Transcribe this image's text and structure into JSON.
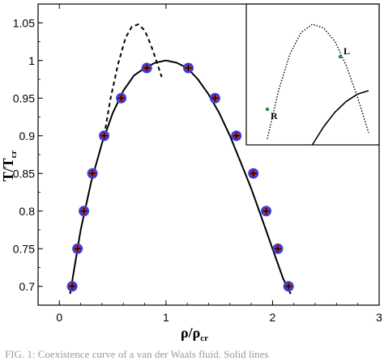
{
  "chart_data": {
    "type": "line",
    "xlabel": {
      "main": "ρ/ρ",
      "sub": "cr"
    },
    "ylabel": {
      "main": "T/T",
      "sub": "cr"
    },
    "xlim": [
      -0.2,
      3.0
    ],
    "ylim": [
      0.675,
      1.075
    ],
    "x_ticks": [
      0,
      1,
      2,
      3
    ],
    "x_tick_labels": [
      "0",
      "1",
      "2",
      "3"
    ],
    "y_ticks": [
      0.7,
      0.75,
      0.8,
      0.85,
      0.9,
      0.95,
      1.0,
      1.05
    ],
    "y_tick_labels": [
      "0.7",
      "0.75",
      "0.8",
      "0.85",
      "0.9",
      "0.95",
      "1",
      "1.05"
    ],
    "grid": false,
    "series": [
      {
        "style": "solid line",
        "color": "#000000",
        "x": [
          0.1,
          0.2,
          0.3,
          0.4,
          0.5,
          0.6,
          0.7,
          0.8,
          0.9,
          1.0,
          1.1,
          1.2,
          1.3,
          1.4,
          1.5,
          1.6,
          1.7,
          1.8,
          1.9,
          2.0,
          2.1,
          2.17
        ],
        "y": [
          0.69,
          0.775,
          0.84,
          0.89,
          0.93,
          0.96,
          0.98,
          0.99,
          0.997,
          1.0,
          0.997,
          0.99,
          0.975,
          0.955,
          0.93,
          0.9,
          0.865,
          0.83,
          0.79,
          0.75,
          0.71,
          0.69
        ]
      },
      {
        "style": "dashed line",
        "color": "#000000",
        "x": [
          0.42,
          0.48,
          0.55,
          0.62,
          0.68,
          0.74,
          0.8,
          0.86,
          0.92,
          0.96
        ],
        "y": [
          0.9,
          0.95,
          0.995,
          1.03,
          1.045,
          1.048,
          1.04,
          1.02,
          0.995,
          0.978
        ]
      },
      {
        "style": "blue circle markers",
        "color": "#3f3fd4",
        "x": [
          0.12,
          0.17,
          0.23,
          0.31,
          0.42,
          0.58,
          0.82,
          1.21,
          1.46,
          1.66,
          1.82,
          1.94,
          2.05,
          2.15
        ],
        "y": [
          0.7,
          0.75,
          0.8,
          0.85,
          0.9,
          0.95,
          0.99,
          0.99,
          0.95,
          0.9,
          0.85,
          0.8,
          0.75,
          0.7
        ]
      },
      {
        "style": "red filled markers",
        "color": "#c81e1e",
        "x": [
          0.12,
          0.17,
          0.23,
          0.31,
          0.42,
          0.58,
          0.82,
          1.21,
          1.46,
          1.66,
          1.82,
          1.94,
          2.05,
          2.15
        ],
        "y": [
          0.7,
          0.75,
          0.8,
          0.85,
          0.9,
          0.95,
          0.99,
          0.99,
          0.95,
          0.9,
          0.85,
          0.8,
          0.75,
          0.7
        ]
      },
      {
        "style": "black plus markers",
        "color": "#000000",
        "x": [
          0.12,
          0.17,
          0.23,
          0.31,
          0.42,
          0.58,
          0.82,
          1.21,
          1.46,
          1.66,
          1.82,
          1.94,
          2.05,
          2.15
        ],
        "y": [
          0.7,
          0.75,
          0.8,
          0.85,
          0.9,
          0.95,
          0.99,
          0.99,
          0.95,
          0.9,
          0.85,
          0.8,
          0.75,
          0.7
        ]
      }
    ],
    "inset": {
      "placement": "top-right",
      "labels": [
        "L",
        "R"
      ],
      "dotted_curve": {
        "x": [
          0.1,
          0.2,
          0.3,
          0.4,
          0.5,
          0.6,
          0.7,
          0.8,
          0.9,
          1.0
        ],
        "y": [
          0.05,
          0.45,
          0.75,
          0.93,
          1.0,
          0.97,
          0.86,
          0.66,
          0.4,
          0.1
        ]
      },
      "solid_curve": {
        "x": [
          0.5,
          0.6,
          0.7,
          0.8,
          0.9,
          1.0
        ],
        "y": [
          0.0,
          0.15,
          0.27,
          0.36,
          0.42,
          0.45
        ]
      }
    }
  },
  "caption": "FIG. 1: Coexistence curve of a van der Waals fluid. Solid lines"
}
